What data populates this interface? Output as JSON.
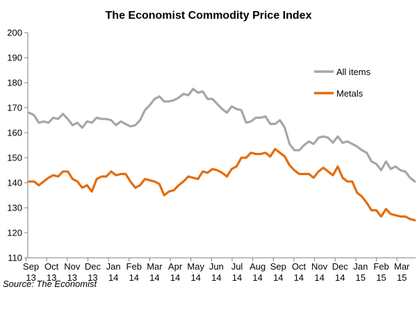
{
  "source": "Source: The Economist",
  "chart_data": {
    "type": "line",
    "title": "The Economist Commodity  Price Index",
    "xlabel": "",
    "ylabel": "",
    "ylim": [
      110,
      200
    ],
    "yticks": [
      110,
      120,
      130,
      140,
      150,
      160,
      170,
      180,
      190,
      200
    ],
    "grid": false,
    "legend_position": "right",
    "x_tick_labels": [
      {
        "month": "Sep",
        "year": "13"
      },
      {
        "month": "Oct",
        "year": "13"
      },
      {
        "month": "Nov",
        "year": "13"
      },
      {
        "month": "Dec",
        "year": "13"
      },
      {
        "month": "Jan",
        "year": "14"
      },
      {
        "month": "Feb",
        "year": "14"
      },
      {
        "month": "Mar",
        "year": "14"
      },
      {
        "month": "Apr",
        "year": "14"
      },
      {
        "month": "May",
        "year": "14"
      },
      {
        "month": "Jun",
        "year": "14"
      },
      {
        "month": "Jul",
        "year": "14"
      },
      {
        "month": "Aug",
        "year": "14"
      },
      {
        "month": "Sep",
        "year": "14"
      },
      {
        "month": "Oct",
        "year": "14"
      },
      {
        "month": "Nov",
        "year": "14"
      },
      {
        "month": "Dec",
        "year": "14"
      },
      {
        "month": "Jan",
        "year": "15"
      },
      {
        "month": "Feb",
        "year": "15"
      },
      {
        "month": "Mar",
        "year": "15"
      }
    ],
    "series": [
      {
        "name": "All items",
        "color": "#a6a6a6",
        "values": [
          168,
          167,
          164,
          164.5,
          164,
          166,
          165.5,
          167.5,
          165.5,
          163,
          164,
          162,
          164.5,
          164,
          166,
          165.5,
          165.5,
          165,
          163,
          164.5,
          163.5,
          162.5,
          163,
          165,
          169,
          171,
          173.5,
          174.5,
          172.5,
          172.5,
          173,
          174,
          175.5,
          175,
          177.5,
          176,
          176.5,
          173.5,
          173.5,
          171.5,
          169.5,
          168,
          170.5,
          169.5,
          169,
          164,
          164.5,
          166,
          166,
          166.5,
          163.5,
          163.5,
          165,
          162,
          155.5,
          153,
          153,
          155,
          156.5,
          155.5,
          158,
          158.5,
          158,
          156,
          158.5,
          156,
          156.5,
          155.5,
          154.5,
          153,
          152,
          148.5,
          147.5,
          145,
          148.5,
          145.5,
          146.5,
          145,
          144.5,
          142,
          140.5
        ]
      },
      {
        "name": "Metals",
        "color": "#e46c0a",
        "values": [
          140.5,
          140.5,
          139,
          140.5,
          142,
          143,
          142.5,
          144.5,
          144.5,
          141.5,
          140.5,
          138,
          139,
          136.5,
          141.5,
          142.5,
          142.5,
          144.5,
          143,
          143.5,
          143.5,
          140.5,
          138,
          139,
          141.5,
          141,
          140.5,
          139.5,
          135,
          136.5,
          137,
          139,
          140.5,
          142.5,
          142,
          141.5,
          144.5,
          144,
          145.5,
          145,
          144,
          142.5,
          145.5,
          146.5,
          150,
          150,
          152,
          151.5,
          151.5,
          152,
          150.5,
          153.5,
          152,
          150.5,
          147,
          145,
          143.5,
          143.5,
          143.5,
          142,
          144.5,
          146,
          144.5,
          143,
          146.5,
          142,
          140.5,
          140.5,
          136,
          134.5,
          132,
          129,
          129,
          126.5,
          129.5,
          127.5,
          127,
          126.5,
          126.5,
          125.5,
          125
        ]
      }
    ]
  }
}
